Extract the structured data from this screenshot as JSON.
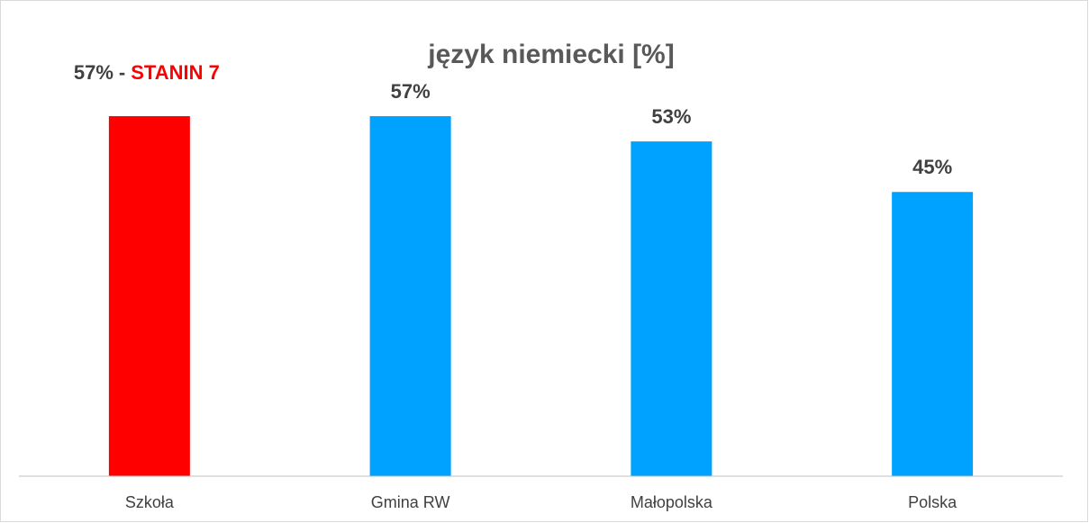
{
  "chart_data": {
    "type": "bar",
    "title": "język niemiecki [%]",
    "categories": [
      "Szkoła",
      "Gmina RW",
      "Małopolska",
      "Polska"
    ],
    "values": [
      57,
      57,
      53,
      45
    ],
    "value_labels": [
      "57%",
      "57%",
      "53%",
      "45%"
    ],
    "colors": [
      "#ff0000",
      "#00a2ff",
      "#00a2ff",
      "#00a2ff"
    ],
    "annotation": {
      "separator": "-",
      "text": "STANIN 7",
      "color": "#ff0000"
    },
    "ylim": [
      0,
      60
    ]
  }
}
